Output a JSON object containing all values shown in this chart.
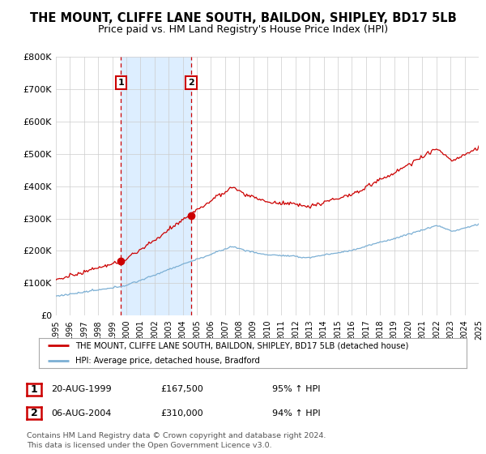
{
  "title": "THE MOUNT, CLIFFE LANE SOUTH, BAILDON, SHIPLEY, BD17 5LB",
  "subtitle": "Price paid vs. HM Land Registry's House Price Index (HPI)",
  "ylim": [
    0,
    800000
  ],
  "yticks": [
    0,
    100000,
    200000,
    300000,
    400000,
    500000,
    600000,
    700000,
    800000
  ],
  "ytick_labels": [
    "£0",
    "£100K",
    "£200K",
    "£300K",
    "£400K",
    "£500K",
    "£600K",
    "£700K",
    "£800K"
  ],
  "hpi_color": "#7bafd4",
  "price_color": "#cc0000",
  "shade_color": "#ddeeff",
  "point1_year": 1999.62,
  "point1_value": 167500,
  "point2_year": 2004.6,
  "point2_value": 310000,
  "legend_line1": "THE MOUNT, CLIFFE LANE SOUTH, BAILDON, SHIPLEY, BD17 5LB (detached house)",
  "legend_line2": "HPI: Average price, detached house, Bradford",
  "table_row1_num": "1",
  "table_row1_date": "20-AUG-1999",
  "table_row1_price": "£167,500",
  "table_row1_hpi": "95% ↑ HPI",
  "table_row2_num": "2",
  "table_row2_date": "06-AUG-2004",
  "table_row2_price": "£310,000",
  "table_row2_hpi": "94% ↑ HPI",
  "footnote": "Contains HM Land Registry data © Crown copyright and database right 2024.\nThis data is licensed under the Open Government Licence v3.0.",
  "background_color": "#ffffff",
  "grid_color": "#cccccc",
  "title_fontsize": 10.5,
  "subtitle_fontsize": 9
}
